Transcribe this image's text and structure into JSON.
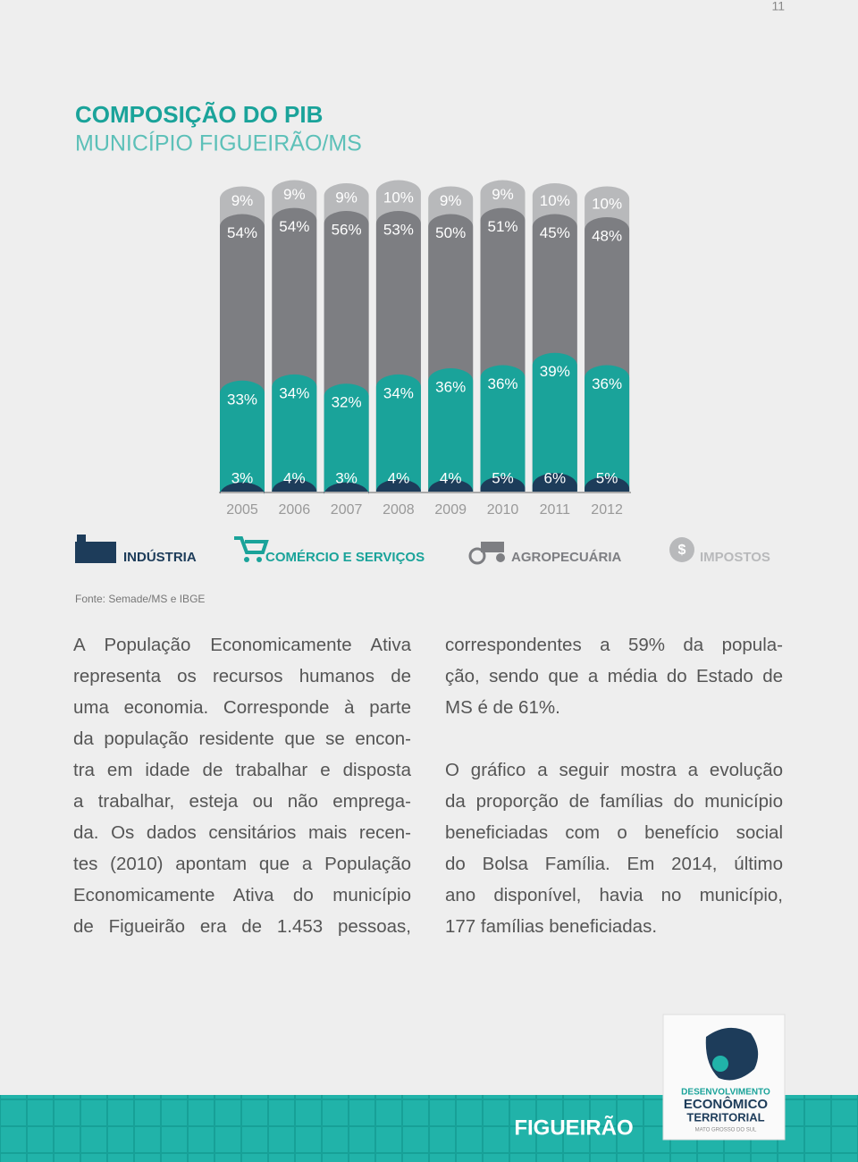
{
  "page_number": "11",
  "chart_data": {
    "type": "stacked_bar",
    "title": "COMPOSIÇÃO DO PIB",
    "subtitle": "MUNICÍPIO FIGUEIRÃO/MS",
    "categories": [
      "2005",
      "2006",
      "2007",
      "2008",
      "2009",
      "2010",
      "2011",
      "2012"
    ],
    "series": [
      {
        "name": "INDÚSTRIA",
        "color": "#1d3c5a",
        "values": [
          3,
          4,
          3,
          4,
          4,
          5,
          6,
          5
        ],
        "value_labels": [
          "3%",
          "4%",
          "3%",
          "4%",
          "4%",
          "5%",
          "6%",
          "5%"
        ]
      },
      {
        "name": "COMÉRCIO E SERVIÇOS",
        "color": "#1aa39a",
        "values": [
          33,
          34,
          32,
          34,
          36,
          36,
          39,
          36
        ],
        "value_labels": [
          "33%",
          "34%",
          "32%",
          "34%",
          "36%",
          "36%",
          "39%",
          "36%"
        ]
      },
      {
        "name": "AGROPECUÁRIA",
        "color": "#7d7e82",
        "values": [
          54,
          54,
          56,
          53,
          50,
          51,
          45,
          48
        ],
        "value_labels": [
          "54%",
          "54%",
          "56%",
          "53%",
          "50%",
          "51%",
          "45%",
          "48%"
        ]
      },
      {
        "name": "IMPOSTOS",
        "color": "#b8b9bb",
        "values": [
          9,
          9,
          9,
          10,
          9,
          9,
          10,
          10
        ],
        "value_labels": [
          "9%",
          "9%",
          "9%",
          "10%",
          "9%",
          "9%",
          "10%",
          "10%"
        ]
      }
    ],
    "ylim": [
      0,
      100
    ],
    "source": "Fonte: Semade/MS e IBGE"
  },
  "text": {
    "left": [
      [
        "A População Economicamente Ativa",
        "representa os recursos humanos de",
        "uma economia. Corresponde à parte",
        "da população residente que se encon-",
        "tra em idade de trabalhar e disposta",
        "a trabalhar, esteja ou não emprega-",
        "da. Os dados censitários mais recen-",
        "tes (2010) apontam que a População",
        "Economicamente Ativa do município",
        "de Figueirão era de 1.453 pessoas,"
      ]
    ],
    "right": [
      [
        "correspondentes a 59% da popula-",
        "ção, sendo que a média do Estado de",
        "MS é de 61%."
      ],
      [
        "O gráfico a seguir mostra a evolução",
        "da proporção de famílias do município",
        "beneficiadas com o benefício social",
        "do Bolsa Família. Em 2014, último",
        "ano disponível, havia no município,",
        "177 famílias beneficiadas."
      ]
    ]
  },
  "footer": {
    "city": "FIGUEIRÃO",
    "logo": [
      "DESENVOLVIMENTO",
      "ECONÔMICO",
      "TERRITORIAL",
      "MATO GROSSO DO SUL"
    ]
  }
}
